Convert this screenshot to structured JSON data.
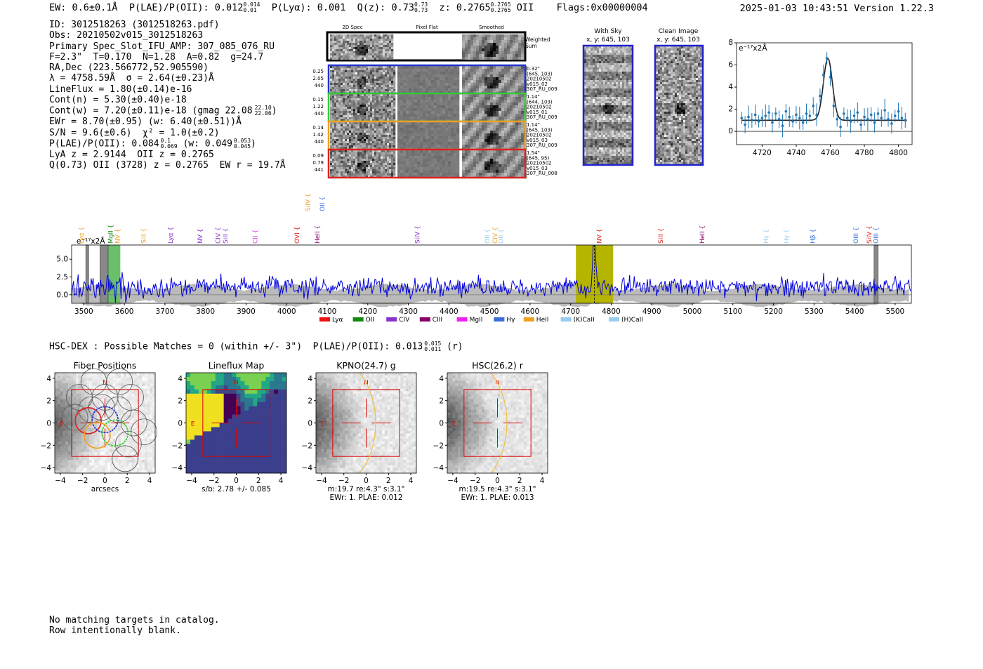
{
  "header": {
    "ew": "EW: 0.6±0.1Å",
    "plae_label": "P(LAE)/P(OII): 0.012",
    "plae_hi": "0.014",
    "plae_lo": "0.01",
    "plya": "P(Lyα): 0.001",
    "q_label": "Q(z): 0.73",
    "q_hi": "0.73",
    "q_lo": "0.73",
    "z_label": "z: 0.2765",
    "z_hi": "0.2765",
    "z_lo": "0.2765",
    "z_line": "OII",
    "flags": "Flags:0x00000004",
    "datetime": "2025-01-03 10:43:51  Version 1.22.3"
  },
  "info": {
    "id": "ID: 3012518263 (3012518263.pdf)",
    "obs": "Obs: 20210502v015_3012518263",
    "primary": "Primary Spec_Slot_IFU_AMP: 307_085_076_RU",
    "params": "F=2.3\"  T=0.170  N=1.28  A=0.82  g=24.7",
    "radec": "RA,Dec (223.566772,52.905590)",
    "lambda": "λ = 4758.59Å  σ = 2.64(±0.23)Å",
    "lineflux": "LineFlux = 1.80(±0.14)e-16",
    "contn": "Cont(n) = 5.30(±0.40)e-18",
    "contw": "Cont(w) = 7.20(±0.11)e-18 (gmag 22.08",
    "contw_hi": "22.10",
    "contw_lo": "22.06",
    "ewr": "EWr = 8.70(±0.95) (w: 6.40(±0.51))Å",
    "sn": "S/N = 9.6(±0.6)  χ² = 1.0(±0.2)",
    "plae": "P(LAE)/P(OII): 0.084",
    "plae_hi": "0.1",
    "plae_lo": "0.069",
    "plae_w": "(w: 0.049",
    "plae_w_hi": "0.053",
    "plae_w_lo": "0.045",
    "lya": "LyA z = 2.9144  OII z = 0.2765",
    "q": "Q(0.73) OII (3728) z = 0.2765  EW r = 19.7Å"
  },
  "cutouts": {
    "col_2d": "2D Spec",
    "col_flat": "Pixel Flat",
    "col_smooth": "Smoothed",
    "weighted": "Weighted Sum",
    "rows": [
      {
        "color": "#2233cc",
        "left": [
          "0.25",
          "2.05",
          "440"
        ],
        "right": [
          "0.32\"",
          "(645, 103)",
          "20210502",
          "v015_02",
          "307_RU_009"
        ]
      },
      {
        "color": "#33cc33",
        "left": [
          "0.15",
          "1.22",
          "440"
        ],
        "right": [
          "1.14\"",
          "(644, 103)",
          "20210502",
          "v015_01",
          "307_RU_009"
        ]
      },
      {
        "color": "#f0a020",
        "left": [
          "0.14",
          "1.42",
          "440"
        ],
        "right": [
          "1.14\"",
          "(645, 103)",
          "20210502",
          "v015_03",
          "307_RU_009"
        ]
      },
      {
        "color": "#dd2222",
        "left": [
          "0.09",
          "0.79",
          "441"
        ],
        "right": [
          "1.54\"",
          "(645, 95)",
          "20210502",
          "v015_03",
          "307_RU_008"
        ]
      }
    ],
    "with_sky": "With Sky",
    "with_sky_xy": "x, y: 645, 103",
    "clean": "Clean Image",
    "clean_xy": "x, y: 645, 103"
  },
  "chart_data": [
    {
      "type": "line",
      "id": "zoom_spectrum",
      "unit_label": "e⁻¹⁷x2Å",
      "xlim": [
        4705,
        4808
      ],
      "ylim": [
        -1.2,
        8.0
      ],
      "xticks": [
        4720,
        4740,
        4760,
        4780,
        4800
      ],
      "yticks": [
        0,
        2,
        4,
        6,
        8
      ],
      "gaussian": {
        "center": 4758.6,
        "sigma": 2.64,
        "amplitude": 5.6,
        "continuum": 1.0
      },
      "points_x": [
        4708,
        4710,
        4712,
        4714,
        4716,
        4718,
        4720,
        4722,
        4724,
        4726,
        4728,
        4730,
        4732,
        4734,
        4736,
        4738,
        4740,
        4742,
        4744,
        4746,
        4748,
        4750,
        4752,
        4754,
        4756,
        4758,
        4760,
        4762,
        4764,
        4766,
        4768,
        4770,
        4772,
        4774,
        4776,
        4778,
        4780,
        4782,
        4784,
        4786,
        4788,
        4790,
        4792,
        4794,
        4796,
        4798,
        4800,
        4802,
        4804
      ],
      "points_y": [
        1.2,
        0.6,
        1.3,
        1.0,
        1.5,
        0.9,
        1.2,
        1.4,
        1.7,
        0.8,
        1.6,
        1.1,
        0.5,
        1.8,
        1.3,
        0.9,
        1.5,
        1.2,
        0.8,
        1.6,
        1.4,
        2.3,
        1.5,
        3.2,
        5.1,
        6.6,
        4.9,
        2.3,
        1.1,
        0.4,
        1.6,
        1.2,
        0.9,
        1.4,
        1.7,
        0.6,
        1.3,
        1.1,
        1.5,
        0.8,
        1.6,
        1.2,
        1.9,
        1.1,
        0.7,
        1.4,
        1.8,
        1.2,
        1.0
      ]
    },
    {
      "type": "line",
      "id": "full_spectrum",
      "unit_label": "e⁻¹⁷x2Å",
      "xlim": [
        3470,
        5540
      ],
      "ylim": [
        -1.2,
        7.0
      ],
      "xticks": [
        3500,
        3600,
        3700,
        3800,
        3900,
        4000,
        4100,
        4200,
        4300,
        4400,
        4500,
        4600,
        4700,
        4800,
        4900,
        5000,
        5100,
        5200,
        5300,
        5400,
        5500
      ],
      "yticks": [
        0.0,
        2.5,
        5.0
      ],
      "emission_peak": {
        "center": 4758.6,
        "amplitude": 7.0
      },
      "highlight_band": [
        4713,
        4805
      ],
      "green_band": [
        3555,
        3590
      ],
      "grey_bands": [
        [
          3505,
          3510
        ],
        [
          3540,
          3560
        ],
        [
          5448,
          5458
        ]
      ],
      "lines_top": [
        {
          "name": "SiIV",
          "wave": 4052,
          "color": "#f0a020"
        },
        {
          "name": "OII",
          "wave": 4088,
          "color": "#3b6fd6"
        }
      ],
      "lines": [
        {
          "name": "Lyα",
          "wave": 3494,
          "color": "#f0a020"
        },
        {
          "name": "MgII",
          "wave": 3566,
          "color": "#118811"
        },
        {
          "name": "NV",
          "wave": 3583,
          "color": "#f0a020"
        },
        {
          "name": "SiII",
          "wave": 3647,
          "color": "#f0a020"
        },
        {
          "name": "Lyα",
          "wave": 3714,
          "color": "#8833cc"
        },
        {
          "name": "NV",
          "wave": 3787,
          "color": "#8833cc"
        },
        {
          "name": "CIV",
          "wave": 3831,
          "color": "#8833cc"
        },
        {
          "name": "SiII",
          "wave": 3849,
          "color": "#8833cc"
        },
        {
          "name": "CII",
          "wave": 3923,
          "color": "#dd33dd"
        },
        {
          "name": "OVI",
          "wave": 4026,
          "color": "#dd2222"
        },
        {
          "name": "HeII",
          "wave": 4076,
          "color": "#880066"
        },
        {
          "name": "SiIV",
          "wave": 4322,
          "color": "#8833cc"
        },
        {
          "name": "OII",
          "wave": 4495,
          "color": "#99ccee"
        },
        {
          "name": "CIV",
          "wave": 4514,
          "color": "#f0a020"
        },
        {
          "name": "OII",
          "wave": 4528,
          "color": "#99ccee"
        },
        {
          "name": "NV",
          "wave": 4771,
          "color": "#dd2222"
        },
        {
          "name": "SiII",
          "wave": 4922,
          "color": "#dd2222"
        },
        {
          "name": "HeII",
          "wave": 5024,
          "color": "#880066"
        },
        {
          "name": "Hγ",
          "wave": 5182,
          "color": "#99ccee"
        },
        {
          "name": "Hγ",
          "wave": 5232,
          "color": "#99ccee"
        },
        {
          "name": "Hβ",
          "wave": 5297,
          "color": "#3b6fd6"
        },
        {
          "name": "OIII",
          "wave": 5403,
          "color": "#3b6fd6"
        },
        {
          "name": "SiIV",
          "wave": 5436,
          "color": "#dd2222"
        },
        {
          "name": "OIII",
          "wave": 5453,
          "color": "#3b6fd6"
        }
      ],
      "legend": [
        {
          "name": "Lyα",
          "color": "#ee1111"
        },
        {
          "name": "OII",
          "color": "#118811"
        },
        {
          "name": "CIV",
          "color": "#8833cc"
        },
        {
          "name": "CIII",
          "color": "#880066"
        },
        {
          "name": "MgII",
          "color": "#ee22ee"
        },
        {
          "name": "Hγ",
          "color": "#3b6fd6"
        },
        {
          "name": "HeII",
          "color": "#f0a020"
        },
        {
          "name": "(K)CaII",
          "color": "#99ccee"
        },
        {
          "name": "(H)CaII",
          "color": "#99ccee"
        }
      ]
    },
    {
      "type": "heatmap",
      "id": "cutout_panels",
      "ticks": [
        -4,
        -2,
        0,
        2,
        4
      ],
      "north_label": "N",
      "east_label": "E",
      "panels": [
        {
          "title": "Fiber Positions",
          "xlabel": "arcsecs",
          "kind": "fibers"
        },
        {
          "title": "Lineflux Map",
          "xlabel": "s/b: 2.78 +/- 0.085",
          "kind": "lineflux"
        },
        {
          "title": "KPNO(24.7) g",
          "xlabel": "m:19.7  re:4.3\"  s:3.1\"",
          "xlabel2": "EWr: 1. PLAE: 0.012",
          "kind": "galaxy"
        },
        {
          "title": "HSC(26.2) r",
          "xlabel": "m:19.5  re:4.3\"  s:3.1\"",
          "xlabel2": "EWr: 1. PLAE: 0.013",
          "kind": "galaxy"
        }
      ]
    }
  ],
  "hsc": {
    "text": "HSC-DEX : Possible Matches = 0 (within +/- 3\")  P(LAE)/P(OII): 0.013",
    "hi": "0.015",
    "lo": "0.011",
    "band": "(r)"
  },
  "footer": {
    "line1": "No matching targets in catalog.",
    "line2": "Row intentionally blank."
  }
}
